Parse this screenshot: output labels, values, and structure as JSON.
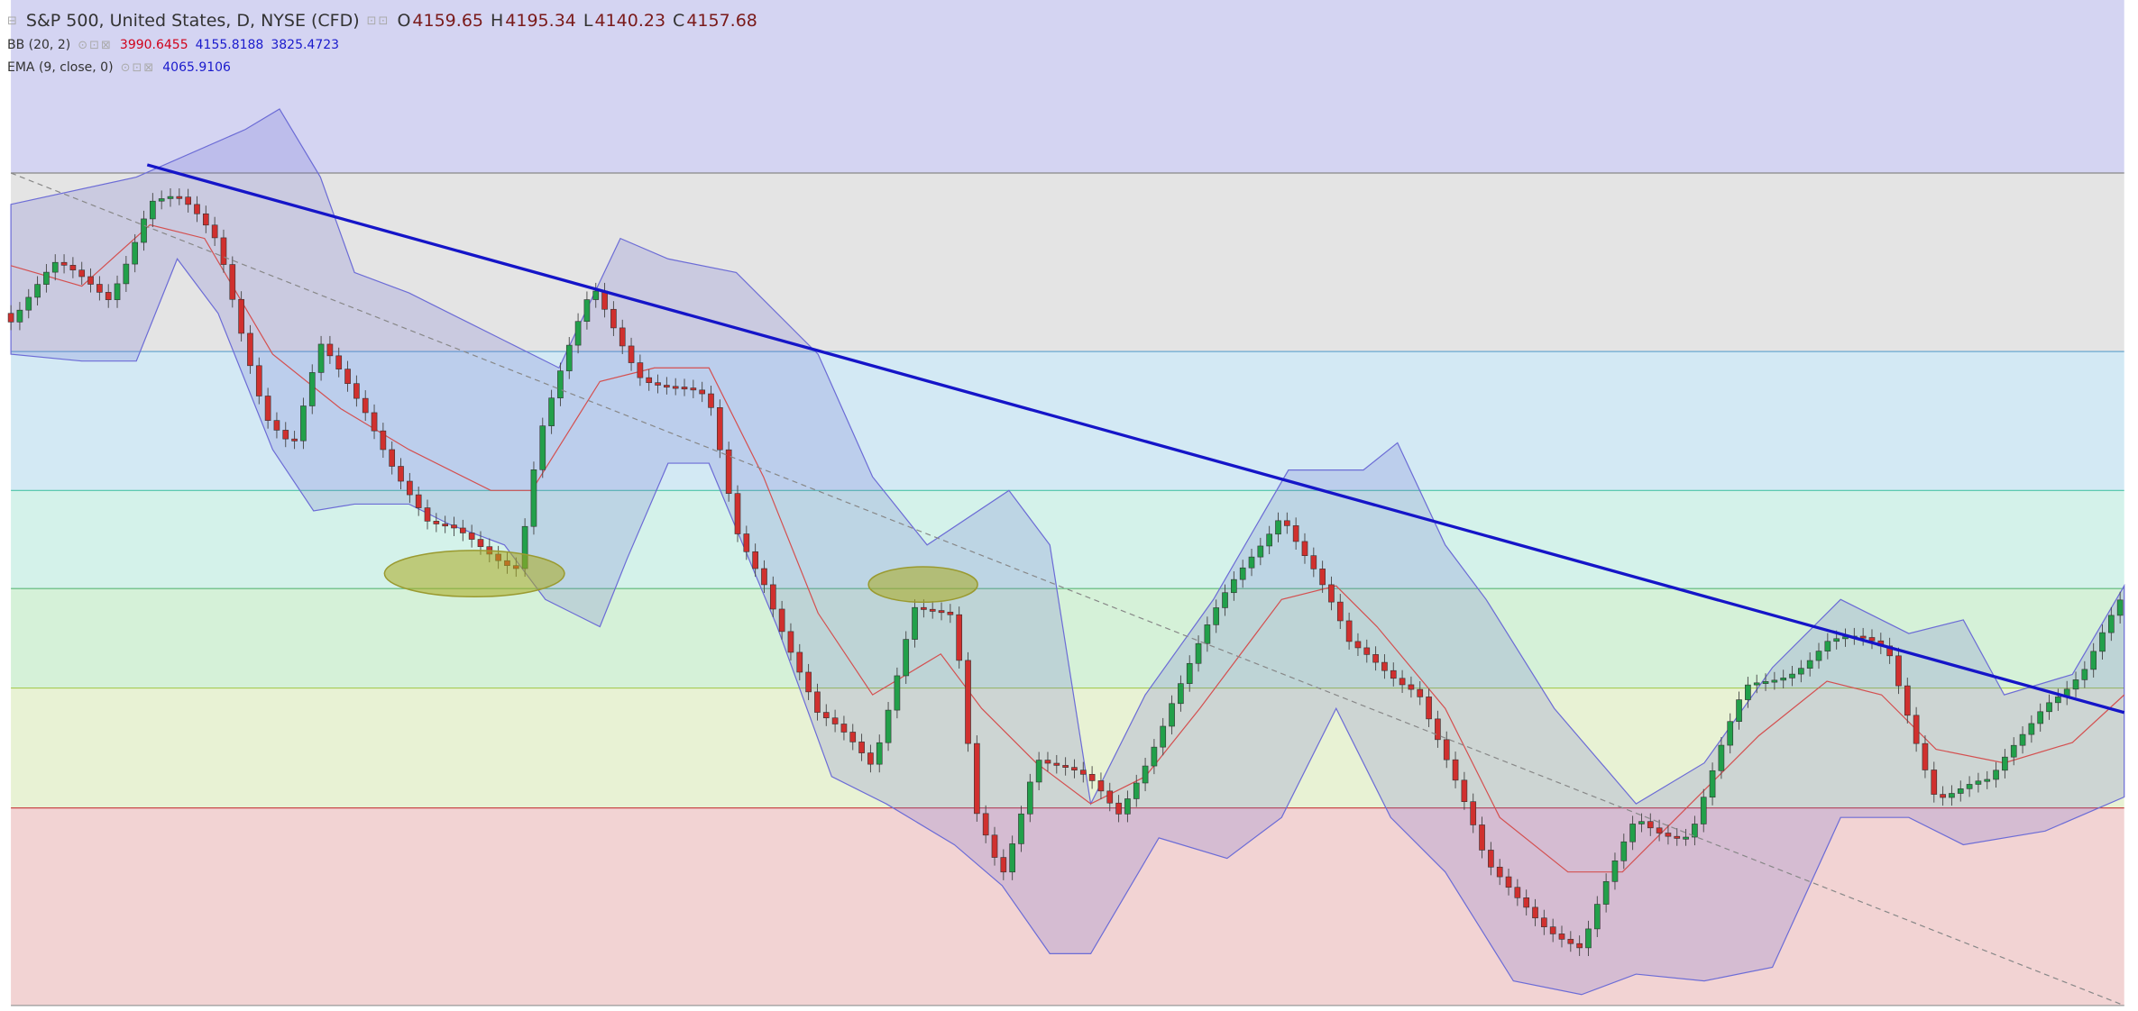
{
  "header": {
    "title": "S&P 500, United States, D, NYSE (CFD)",
    "ohlc": [
      {
        "label": "O",
        "value": "4159.65"
      },
      {
        "label": "H",
        "value": "4195.34"
      },
      {
        "label": "L",
        "value": "4140.23"
      },
      {
        "label": "C",
        "value": "4157.68"
      }
    ]
  },
  "indicators": [
    {
      "name": "BB (20, 2)",
      "values": [
        "3990.6455",
        "4155.8188",
        "3825.4723"
      ]
    },
    {
      "name": "EMA (9, close, 0)",
      "values": [
        "4065.9106"
      ]
    }
  ]
}
